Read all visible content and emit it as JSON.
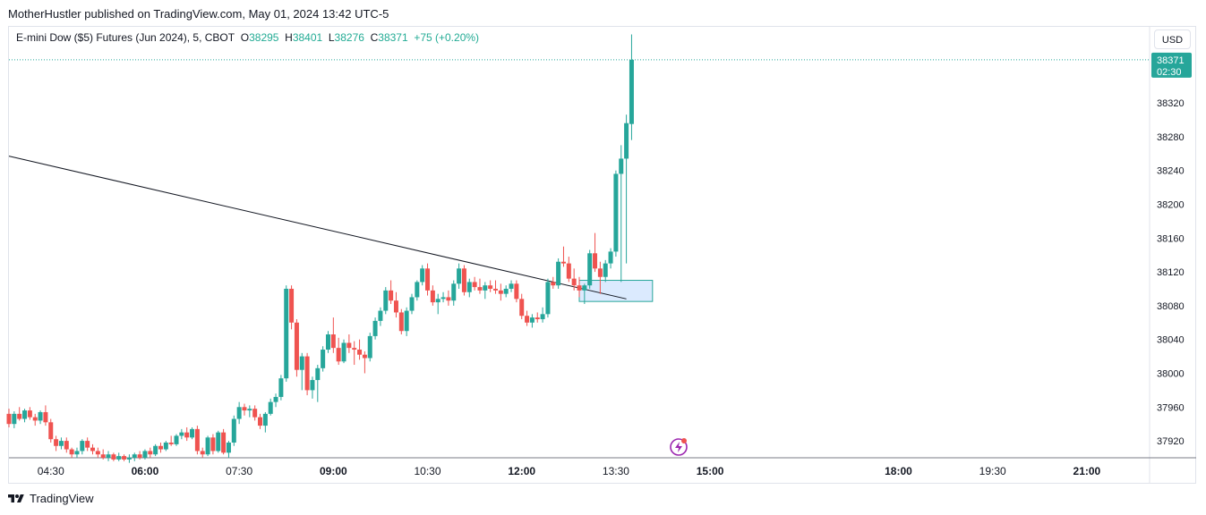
{
  "header": {
    "published": "MotherHustler published on TradingView.com, May 01, 2024 13:42 UTC-5"
  },
  "legend": {
    "symbol": "E-mini Dow ($5) Futures (Jun 2024), 5, CBOT",
    "o_label": "O",
    "o_value": "38295",
    "h_label": "H",
    "h_value": "38401",
    "l_label": "L",
    "l_value": "38276",
    "c_label": "C",
    "c_value": "38371",
    "change": "+75 (+0.20%)"
  },
  "currency_button": "USD",
  "price_tag": {
    "price": "38371",
    "countdown": "02:30"
  },
  "footer": {
    "brand": "TradingView"
  },
  "colors": {
    "up": "#26a69a",
    "down": "#ef5350",
    "trendline": "#131722",
    "zone_fill": "#dbeafe",
    "zone_border": "#26a69a",
    "flash": "#9c27b0"
  },
  "chart_data": {
    "type": "candlestick",
    "interval_minutes": 5,
    "y_ticks": [
      37920,
      37960,
      38000,
      38040,
      38080,
      38120,
      38160,
      38200,
      38240,
      38280,
      38320
    ],
    "x_ticks": [
      {
        "label": "04:30",
        "bold": false
      },
      {
        "label": "06:00",
        "bold": true
      },
      {
        "label": "07:30",
        "bold": false
      },
      {
        "label": "09:00",
        "bold": true
      },
      {
        "label": "10:30",
        "bold": false
      },
      {
        "label": "12:00",
        "bold": true
      },
      {
        "label": "13:30",
        "bold": false
      },
      {
        "label": "15:00",
        "bold": true
      },
      {
        "label": "18:00",
        "bold": true
      },
      {
        "label": "19:30",
        "bold": false
      },
      {
        "label": "21:00",
        "bold": true
      }
    ],
    "ylim": [
      37900,
      38410
    ],
    "time_range": [
      "03:50",
      "22:00"
    ],
    "last_price": 38371,
    "candles": [
      {
        "t": "03:50",
        "o": 37952,
        "h": 37958,
        "l": 37936,
        "c": 37940
      },
      {
        "t": "03:55",
        "o": 37940,
        "h": 37955,
        "l": 37935,
        "c": 37952
      },
      {
        "t": "04:00",
        "o": 37952,
        "h": 37960,
        "l": 37944,
        "c": 37946
      },
      {
        "t": "04:05",
        "o": 37946,
        "h": 37958,
        "l": 37942,
        "c": 37956
      },
      {
        "t": "04:10",
        "o": 37956,
        "h": 37960,
        "l": 37945,
        "c": 37948
      },
      {
        "t": "04:15",
        "o": 37948,
        "h": 37952,
        "l": 37938,
        "c": 37944
      },
      {
        "t": "04:20",
        "o": 37944,
        "h": 37956,
        "l": 37940,
        "c": 37954
      },
      {
        "t": "04:25",
        "o": 37954,
        "h": 37962,
        "l": 37938,
        "c": 37942
      },
      {
        "t": "04:30",
        "o": 37942,
        "h": 37946,
        "l": 37918,
        "c": 37922
      },
      {
        "t": "04:35",
        "o": 37922,
        "h": 37926,
        "l": 37908,
        "c": 37914
      },
      {
        "t": "04:40",
        "o": 37914,
        "h": 37924,
        "l": 37910,
        "c": 37920
      },
      {
        "t": "04:45",
        "o": 37920,
        "h": 37924,
        "l": 37906,
        "c": 37910
      },
      {
        "t": "04:50",
        "o": 37910,
        "h": 37912,
        "l": 37900,
        "c": 37904
      },
      {
        "t": "04:55",
        "o": 37904,
        "h": 37912,
        "l": 37900,
        "c": 37908
      },
      {
        "t": "05:00",
        "o": 37908,
        "h": 37922,
        "l": 37904,
        "c": 37920
      },
      {
        "t": "05:05",
        "o": 37920,
        "h": 37924,
        "l": 37908,
        "c": 37912
      },
      {
        "t": "05:10",
        "o": 37912,
        "h": 37916,
        "l": 37904,
        "c": 37908
      },
      {
        "t": "05:15",
        "o": 37908,
        "h": 37912,
        "l": 37900,
        "c": 37904
      },
      {
        "t": "05:20",
        "o": 37904,
        "h": 37910,
        "l": 37898,
        "c": 37900
      },
      {
        "t": "05:25",
        "o": 37900,
        "h": 37908,
        "l": 37896,
        "c": 37904
      },
      {
        "t": "05:30",
        "o": 37904,
        "h": 37906,
        "l": 37896,
        "c": 37898
      },
      {
        "t": "05:35",
        "o": 37898,
        "h": 37906,
        "l": 37896,
        "c": 37902
      },
      {
        "t": "05:40",
        "o": 37902,
        "h": 37904,
        "l": 37896,
        "c": 37898
      },
      {
        "t": "05:45",
        "o": 37898,
        "h": 37904,
        "l": 37894,
        "c": 37900
      },
      {
        "t": "05:50",
        "o": 37900,
        "h": 37906,
        "l": 37896,
        "c": 37904
      },
      {
        "t": "05:55",
        "o": 37904,
        "h": 37908,
        "l": 37898,
        "c": 37900
      },
      {
        "t": "06:00",
        "o": 37900,
        "h": 37910,
        "l": 37898,
        "c": 37908
      },
      {
        "t": "06:05",
        "o": 37908,
        "h": 37912,
        "l": 37900,
        "c": 37904
      },
      {
        "t": "06:10",
        "o": 37904,
        "h": 37916,
        "l": 37902,
        "c": 37914
      },
      {
        "t": "06:15",
        "o": 37914,
        "h": 37918,
        "l": 37906,
        "c": 37910
      },
      {
        "t": "06:20",
        "o": 37910,
        "h": 37920,
        "l": 37908,
        "c": 37918
      },
      {
        "t": "06:25",
        "o": 37918,
        "h": 37926,
        "l": 37914,
        "c": 37916
      },
      {
        "t": "06:30",
        "o": 37916,
        "h": 37928,
        "l": 37914,
        "c": 37926
      },
      {
        "t": "06:35",
        "o": 37926,
        "h": 37934,
        "l": 37922,
        "c": 37930
      },
      {
        "t": "06:40",
        "o": 37930,
        "h": 37936,
        "l": 37920,
        "c": 37924
      },
      {
        "t": "06:45",
        "o": 37924,
        "h": 37936,
        "l": 37922,
        "c": 37934
      },
      {
        "t": "06:50",
        "o": 37934,
        "h": 37938,
        "l": 37904,
        "c": 37908
      },
      {
        "t": "06:55",
        "o": 37908,
        "h": 37912,
        "l": 37900,
        "c": 37904
      },
      {
        "t": "07:00",
        "o": 37904,
        "h": 37926,
        "l": 37902,
        "c": 37924
      },
      {
        "t": "07:05",
        "o": 37924,
        "h": 37928,
        "l": 37904,
        "c": 37908
      },
      {
        "t": "07:10",
        "o": 37908,
        "h": 37932,
        "l": 37906,
        "c": 37930
      },
      {
        "t": "07:15",
        "o": 37930,
        "h": 37934,
        "l": 37904,
        "c": 37906
      },
      {
        "t": "07:20",
        "o": 37906,
        "h": 37920,
        "l": 37900,
        "c": 37918
      },
      {
        "t": "07:25",
        "o": 37918,
        "h": 37950,
        "l": 37914,
        "c": 37946
      },
      {
        "t": "07:30",
        "o": 37946,
        "h": 37966,
        "l": 37940,
        "c": 37960
      },
      {
        "t": "07:35",
        "o": 37960,
        "h": 37964,
        "l": 37950,
        "c": 37956
      },
      {
        "t": "07:40",
        "o": 37956,
        "h": 37962,
        "l": 37948,
        "c": 37958
      },
      {
        "t": "07:45",
        "o": 37958,
        "h": 37962,
        "l": 37944,
        "c": 37948
      },
      {
        "t": "07:50",
        "o": 37948,
        "h": 37952,
        "l": 37934,
        "c": 37938
      },
      {
        "t": "07:55",
        "o": 37938,
        "h": 37954,
        "l": 37930,
        "c": 37952
      },
      {
        "t": "08:00",
        "o": 37952,
        "h": 37970,
        "l": 37950,
        "c": 37966
      },
      {
        "t": "08:05",
        "o": 37966,
        "h": 37976,
        "l": 37960,
        "c": 37972
      },
      {
        "t": "08:10",
        "o": 37972,
        "h": 37998,
        "l": 37968,
        "c": 37994
      },
      {
        "t": "08:15",
        "o": 37994,
        "h": 38104,
        "l": 37990,
        "c": 38100
      },
      {
        "t": "08:20",
        "o": 38100,
        "h": 38104,
        "l": 38052,
        "c": 38060
      },
      {
        "t": "08:25",
        "o": 38060,
        "h": 38064,
        "l": 37996,
        "c": 38004
      },
      {
        "t": "08:30",
        "o": 38004,
        "h": 38024,
        "l": 37980,
        "c": 38020
      },
      {
        "t": "08:35",
        "o": 38020,
        "h": 38024,
        "l": 37974,
        "c": 37980
      },
      {
        "t": "08:40",
        "o": 37980,
        "h": 37996,
        "l": 37970,
        "c": 37992
      },
      {
        "t": "08:45",
        "o": 37992,
        "h": 38010,
        "l": 37966,
        "c": 38006
      },
      {
        "t": "08:50",
        "o": 38006,
        "h": 38032,
        "l": 38002,
        "c": 38028
      },
      {
        "t": "08:55",
        "o": 38028,
        "h": 38050,
        "l": 38024,
        "c": 38046
      },
      {
        "t": "09:00",
        "o": 38046,
        "h": 38066,
        "l": 38024,
        "c": 38030
      },
      {
        "t": "09:05",
        "o": 38030,
        "h": 38042,
        "l": 38010,
        "c": 38014
      },
      {
        "t": "09:10",
        "o": 38014,
        "h": 38040,
        "l": 38012,
        "c": 38036
      },
      {
        "t": "09:15",
        "o": 38036,
        "h": 38046,
        "l": 38024,
        "c": 38030
      },
      {
        "t": "09:20",
        "o": 38030,
        "h": 38038,
        "l": 38010,
        "c": 38028
      },
      {
        "t": "09:25",
        "o": 38028,
        "h": 38040,
        "l": 38016,
        "c": 38022
      },
      {
        "t": "09:30",
        "o": 38022,
        "h": 38026,
        "l": 38000,
        "c": 38018
      },
      {
        "t": "09:35",
        "o": 38018,
        "h": 38048,
        "l": 38014,
        "c": 38044
      },
      {
        "t": "09:40",
        "o": 38044,
        "h": 38066,
        "l": 38040,
        "c": 38062
      },
      {
        "t": "09:45",
        "o": 38062,
        "h": 38078,
        "l": 38056,
        "c": 38074
      },
      {
        "t": "09:50",
        "o": 38074,
        "h": 38102,
        "l": 38070,
        "c": 38098
      },
      {
        "t": "09:55",
        "o": 38098,
        "h": 38110,
        "l": 38082,
        "c": 38086
      },
      {
        "t": "10:00",
        "o": 38086,
        "h": 38096,
        "l": 38066,
        "c": 38072
      },
      {
        "t": "10:05",
        "o": 38072,
        "h": 38076,
        "l": 38046,
        "c": 38050
      },
      {
        "t": "10:10",
        "o": 38050,
        "h": 38078,
        "l": 38044,
        "c": 38074
      },
      {
        "t": "10:15",
        "o": 38074,
        "h": 38094,
        "l": 38070,
        "c": 38090
      },
      {
        "t": "10:20",
        "o": 38090,
        "h": 38110,
        "l": 38086,
        "c": 38108
      },
      {
        "t": "10:25",
        "o": 38108,
        "h": 38128,
        "l": 38104,
        "c": 38124
      },
      {
        "t": "10:30",
        "o": 38124,
        "h": 38130,
        "l": 38092,
        "c": 38098
      },
      {
        "t": "10:35",
        "o": 38098,
        "h": 38104,
        "l": 38080,
        "c": 38084
      },
      {
        "t": "10:40",
        "o": 38084,
        "h": 38094,
        "l": 38070,
        "c": 38088
      },
      {
        "t": "10:45",
        "o": 38088,
        "h": 38096,
        "l": 38084,
        "c": 38090
      },
      {
        "t": "10:50",
        "o": 38090,
        "h": 38098,
        "l": 38080,
        "c": 38086
      },
      {
        "t": "10:55",
        "o": 38086,
        "h": 38110,
        "l": 38080,
        "c": 38106
      },
      {
        "t": "11:00",
        "o": 38106,
        "h": 38130,
        "l": 38100,
        "c": 38124
      },
      {
        "t": "11:05",
        "o": 38124,
        "h": 38128,
        "l": 38092,
        "c": 38096
      },
      {
        "t": "11:10",
        "o": 38096,
        "h": 38112,
        "l": 38090,
        "c": 38108
      },
      {
        "t": "11:15",
        "o": 38108,
        "h": 38114,
        "l": 38098,
        "c": 38102
      },
      {
        "t": "11:20",
        "o": 38102,
        "h": 38112,
        "l": 38094,
        "c": 38098
      },
      {
        "t": "11:25",
        "o": 38098,
        "h": 38108,
        "l": 38088,
        "c": 38104
      },
      {
        "t": "11:30",
        "o": 38104,
        "h": 38110,
        "l": 38096,
        "c": 38100
      },
      {
        "t": "11:35",
        "o": 38100,
        "h": 38110,
        "l": 38094,
        "c": 38098
      },
      {
        "t": "11:40",
        "o": 38098,
        "h": 38106,
        "l": 38086,
        "c": 38094
      },
      {
        "t": "11:45",
        "o": 38094,
        "h": 38104,
        "l": 38090,
        "c": 38100
      },
      {
        "t": "11:50",
        "o": 38100,
        "h": 38110,
        "l": 38096,
        "c": 38106
      },
      {
        "t": "11:55",
        "o": 38106,
        "h": 38110,
        "l": 38084,
        "c": 38088
      },
      {
        "t": "12:00",
        "o": 38088,
        "h": 38094,
        "l": 38064,
        "c": 38068
      },
      {
        "t": "12:05",
        "o": 38068,
        "h": 38074,
        "l": 38056,
        "c": 38060
      },
      {
        "t": "12:10",
        "o": 38060,
        "h": 38070,
        "l": 38054,
        "c": 38066
      },
      {
        "t": "12:15",
        "o": 38066,
        "h": 38072,
        "l": 38060,
        "c": 38064
      },
      {
        "t": "12:20",
        "o": 38064,
        "h": 38078,
        "l": 38060,
        "c": 38070
      },
      {
        "t": "12:25",
        "o": 38070,
        "h": 38112,
        "l": 38066,
        "c": 38108
      },
      {
        "t": "12:30",
        "o": 38108,
        "h": 38114,
        "l": 38100,
        "c": 38104
      },
      {
        "t": "12:35",
        "o": 38104,
        "h": 38136,
        "l": 38100,
        "c": 38132
      },
      {
        "t": "12:40",
        "o": 38132,
        "h": 38150,
        "l": 38126,
        "c": 38130
      },
      {
        "t": "12:45",
        "o": 38130,
        "h": 38138,
        "l": 38108,
        "c": 38112
      },
      {
        "t": "12:50",
        "o": 38112,
        "h": 38124,
        "l": 38098,
        "c": 38104
      },
      {
        "t": "12:55",
        "o": 38104,
        "h": 38114,
        "l": 38090,
        "c": 38098
      },
      {
        "t": "13:00",
        "o": 38098,
        "h": 38106,
        "l": 38082,
        "c": 38104
      },
      {
        "t": "13:05",
        "o": 38104,
        "h": 38146,
        "l": 38100,
        "c": 38142
      },
      {
        "t": "13:10",
        "o": 38142,
        "h": 38166,
        "l": 38120,
        "c": 38124
      },
      {
        "t": "13:15",
        "o": 38124,
        "h": 38132,
        "l": 38094,
        "c": 38114
      },
      {
        "t": "13:20",
        "o": 38114,
        "h": 38134,
        "l": 38108,
        "c": 38130
      },
      {
        "t": "13:25",
        "o": 38130,
        "h": 38148,
        "l": 38124,
        "c": 38144
      },
      {
        "t": "13:30",
        "o": 38144,
        "h": 38240,
        "l": 38138,
        "c": 38236
      },
      {
        "t": "13:35",
        "o": 38236,
        "h": 38270,
        "l": 38108,
        "c": 38254
      },
      {
        "t": "13:40",
        "o": 38254,
        "h": 38306,
        "l": 38130,
        "c": 38296
      },
      {
        "t": "13:45",
        "o": 38295,
        "h": 38401,
        "l": 38276,
        "c": 38371
      }
    ],
    "trendline": {
      "from": {
        "t": "03:50",
        "price": 38257
      },
      "to": {
        "t": "13:40",
        "price": 38088
      }
    },
    "zone": {
      "from_t": "12:55",
      "to_t": "14:05",
      "top": 38110,
      "bottom": 38085
    }
  }
}
